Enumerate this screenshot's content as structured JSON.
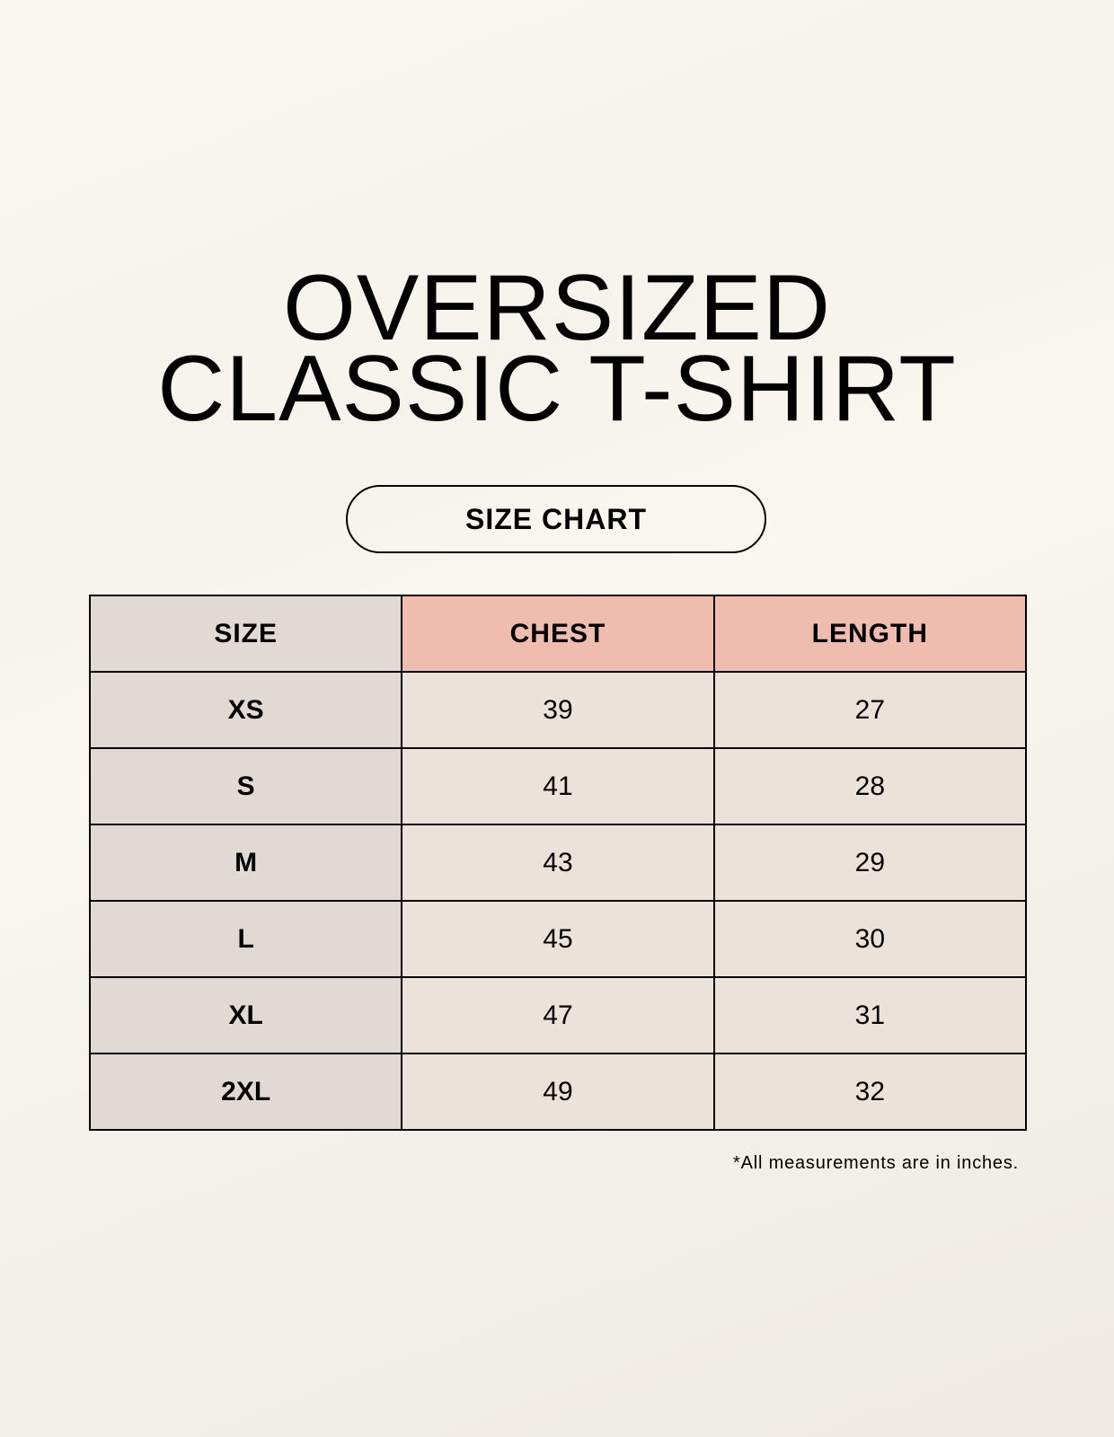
{
  "title": {
    "line1": "OVERSIZED",
    "line2": "CLASSIC T-SHIRT"
  },
  "badge": "SIZE CHART",
  "table": {
    "headers": [
      "SIZE",
      "CHEST",
      "LENGTH"
    ],
    "rows": [
      [
        "XS",
        "39",
        "27"
      ],
      [
        "S",
        "41",
        "28"
      ],
      [
        "M",
        "43",
        "29"
      ],
      [
        "L",
        "45",
        "30"
      ],
      [
        "XL",
        "47",
        "31"
      ],
      [
        "2XL",
        "49",
        "32"
      ]
    ]
  },
  "note": "*All measurements are in inches.",
  "colors": {
    "size_column": "#e0d9d4",
    "header_accent": "#eebdb0",
    "cells": "#ebe3da"
  }
}
